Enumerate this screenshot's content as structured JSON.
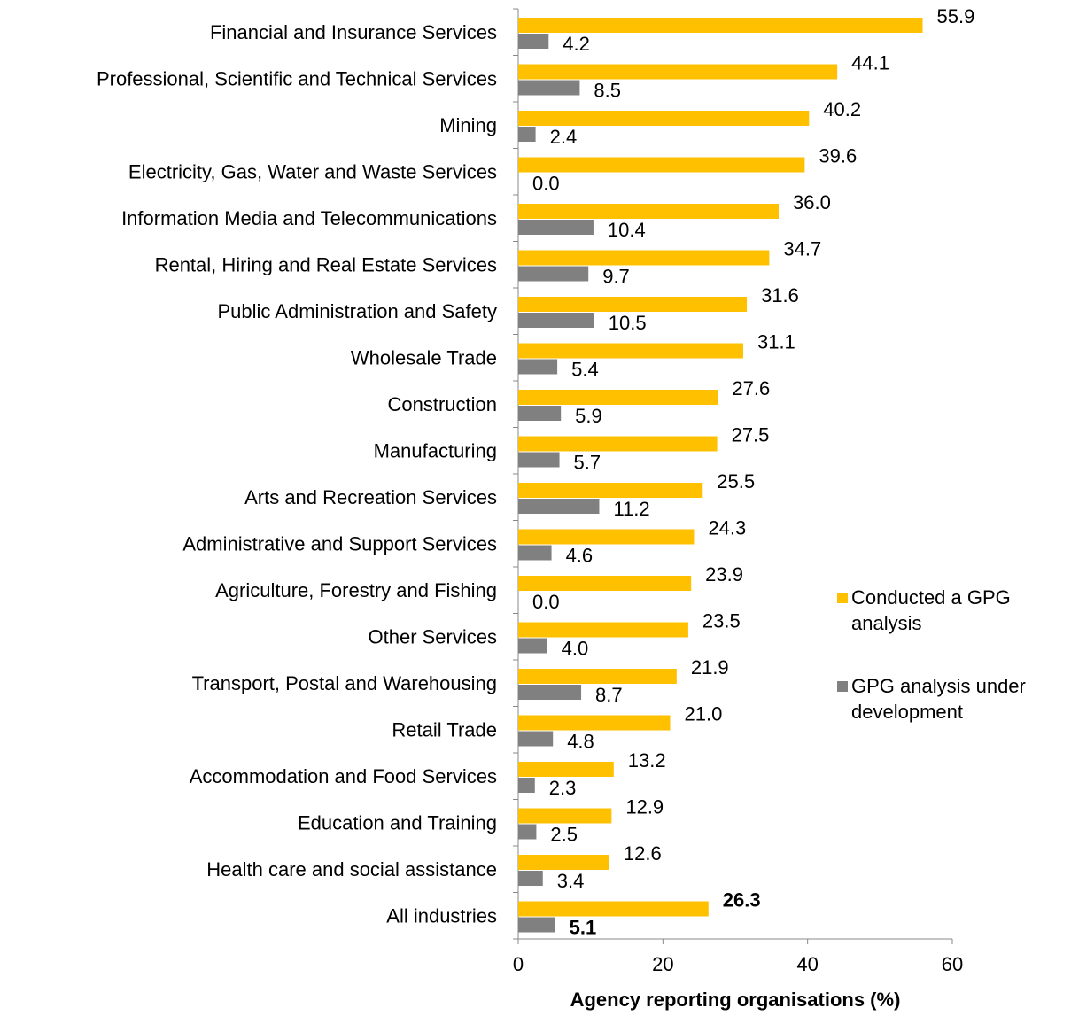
{
  "chart_data": {
    "type": "barh",
    "x_label": "Agency reporting organisations (%)",
    "categories": [
      "Financial and Insurance Services",
      "Professional, Scientific and Technical Services",
      "Mining",
      "Electricity, Gas, Water and Waste Services",
      "Information Media and Telecommunications",
      "Rental, Hiring and Real Estate Services",
      "Public Administration and Safety",
      "Wholesale Trade",
      "Construction",
      "Manufacturing",
      "Arts and Recreation Services",
      "Administrative and Support Services",
      "Agriculture, Forestry and Fishing",
      "Other Services",
      "Transport, Postal and Warehousing",
      "Retail Trade",
      "Accommodation and Food Services",
      "Education and Training",
      "Health care and social assistance",
      "All industries"
    ],
    "series": [
      {
        "name": "Conducted a GPG analysis",
        "color": "#ffc000",
        "values": [
          55.9,
          44.1,
          40.2,
          39.6,
          36.0,
          34.7,
          31.6,
          31.1,
          27.6,
          27.5,
          25.5,
          24.3,
          23.9,
          23.5,
          21.9,
          21.0,
          13.2,
          12.9,
          12.6,
          26.3
        ],
        "value_labels": [
          "55.9",
          "44.1",
          "40.2",
          "39.6",
          "36.0",
          "34.7",
          "31.6",
          "31.1",
          "27.6",
          "27.5",
          "25.5",
          "24.3",
          "23.9",
          "23.5",
          "21.9",
          "21.0",
          "13.2",
          "12.9",
          "12.6",
          "26.3"
        ]
      },
      {
        "name": "GPG analysis under development",
        "color": "#808080",
        "values": [
          4.2,
          8.5,
          2.4,
          0.0,
          10.4,
          9.7,
          10.5,
          5.4,
          5.9,
          5.7,
          11.2,
          4.6,
          0.0,
          4.0,
          8.7,
          4.8,
          2.3,
          2.5,
          3.4,
          5.1
        ],
        "value_labels": [
          "4.2",
          "8.5",
          "2.4",
          "0.0",
          "10.4",
          "9.7",
          "10.5",
          "5.4",
          "5.9",
          "5.7",
          "11.2",
          "4.6",
          "0.0",
          "4.0",
          "8.7",
          "4.8",
          "2.3",
          "2.5",
          "3.4",
          "5.1"
        ]
      }
    ],
    "xlim": [
      0,
      60
    ],
    "xticks": [
      0,
      20,
      40,
      60
    ],
    "legend": "right"
  }
}
